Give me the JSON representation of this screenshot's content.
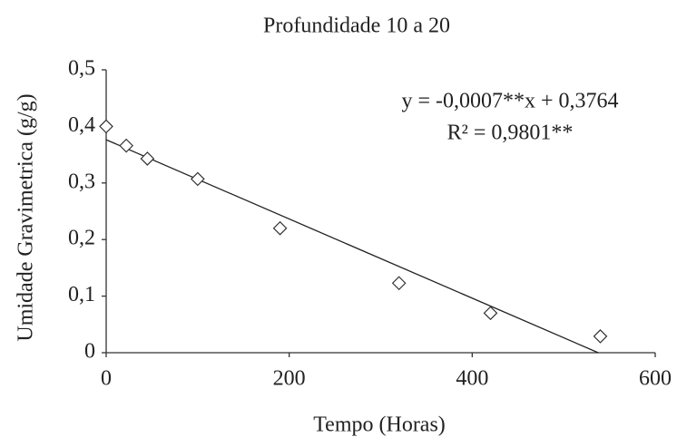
{
  "chart_data": {
    "type": "scatter",
    "title": "Profundidade 10 a 20",
    "x_label": "Tempo (Horas)",
    "y_label": "Umidade Gravimetrica  (g/g)",
    "annotations": [
      "y = -0,0007**x + 0,3764",
      "R² = 0,9801**"
    ],
    "series": [
      {
        "x": [
          0,
          22,
          45,
          100,
          190,
          320,
          420,
          540
        ],
        "values": [
          0.4,
          0.366,
          0.343,
          0.307,
          0.22,
          0.123,
          0.07,
          0.029
        ],
        "color": "#333333"
      }
    ],
    "trendline": {
      "x": [
        0,
        537.7
      ],
      "values": [
        0.3764,
        0
      ],
      "color": "#222222"
    },
    "xlim": [
      0,
      600
    ],
    "xticks": [
      0,
      200,
      400,
      600
    ],
    "ylim": [
      0,
      0.5
    ],
    "yticks": [
      0,
      {
        "value": 0.1,
        "label": "0,1"
      },
      {
        "value": 0.2,
        "label": "0,2"
      },
      {
        "value": 0.3,
        "label": "0,3"
      },
      {
        "value": 0.4,
        "label": "0,4"
      },
      {
        "value": 0.5,
        "label": "0,5"
      }
    ],
    "grid": false
  }
}
